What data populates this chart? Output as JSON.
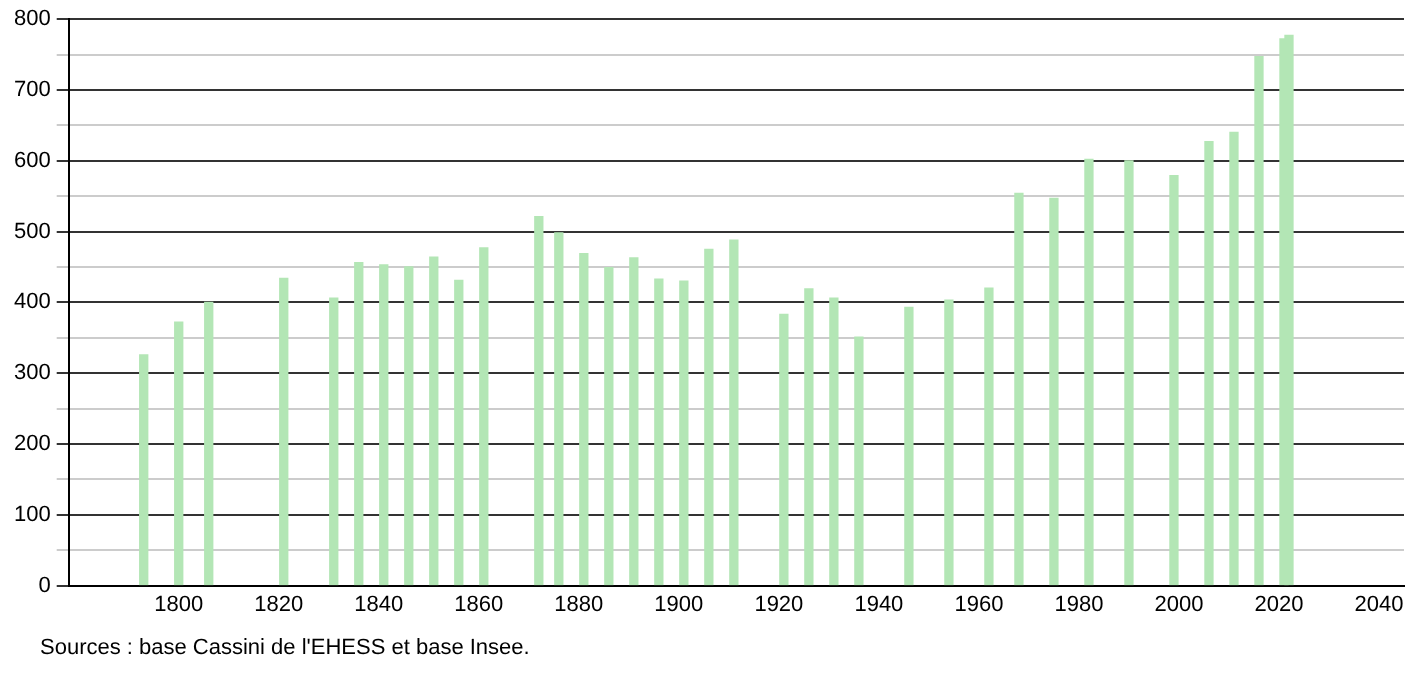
{
  "chart_data": {
    "type": "bar",
    "x": [
      1793,
      1800,
      1806,
      1821,
      1831,
      1836,
      1841,
      1846,
      1851,
      1856,
      1861,
      1872,
      1876,
      1881,
      1886,
      1891,
      1896,
      1901,
      1906,
      1911,
      1921,
      1926,
      1931,
      1936,
      1946,
      1954,
      1962,
      1968,
      1975,
      1982,
      1990,
      1999,
      2006,
      2011,
      2016,
      2021,
      2022
    ],
    "values": [
      326,
      372,
      400,
      434,
      406,
      456,
      453,
      450,
      464,
      431,
      477,
      521,
      498,
      469,
      449,
      463,
      433,
      430,
      475,
      488,
      383,
      419,
      406,
      351,
      393,
      403,
      420,
      554,
      547,
      602,
      600,
      579,
      627,
      640,
      747,
      772,
      777
    ],
    "color": "#b3e6b5",
    "xlim": [
      1778,
      2045
    ],
    "xticks": [
      1800,
      1820,
      1840,
      1860,
      1880,
      1900,
      1920,
      1940,
      1960,
      1980,
      2000,
      2020,
      2040
    ],
    "ylim": [
      0,
      800
    ],
    "yticks": [
      0,
      {
        "value": 50,
        "label": null
      },
      100,
      {
        "value": 150,
        "label": null
      },
      200,
      {
        "value": 250,
        "label": null
      },
      300,
      {
        "value": 350,
        "label": null
      },
      400,
      {
        "value": 450,
        "label": null
      },
      500,
      {
        "value": 550,
        "label": null
      },
      600,
      {
        "value": 650,
        "label": null
      },
      700,
      {
        "value": 750,
        "label": null
      },
      800
    ],
    "grid": "y",
    "annotations": [
      "Sources : base Cassini de l'EHESS et base Insee."
    ]
  }
}
